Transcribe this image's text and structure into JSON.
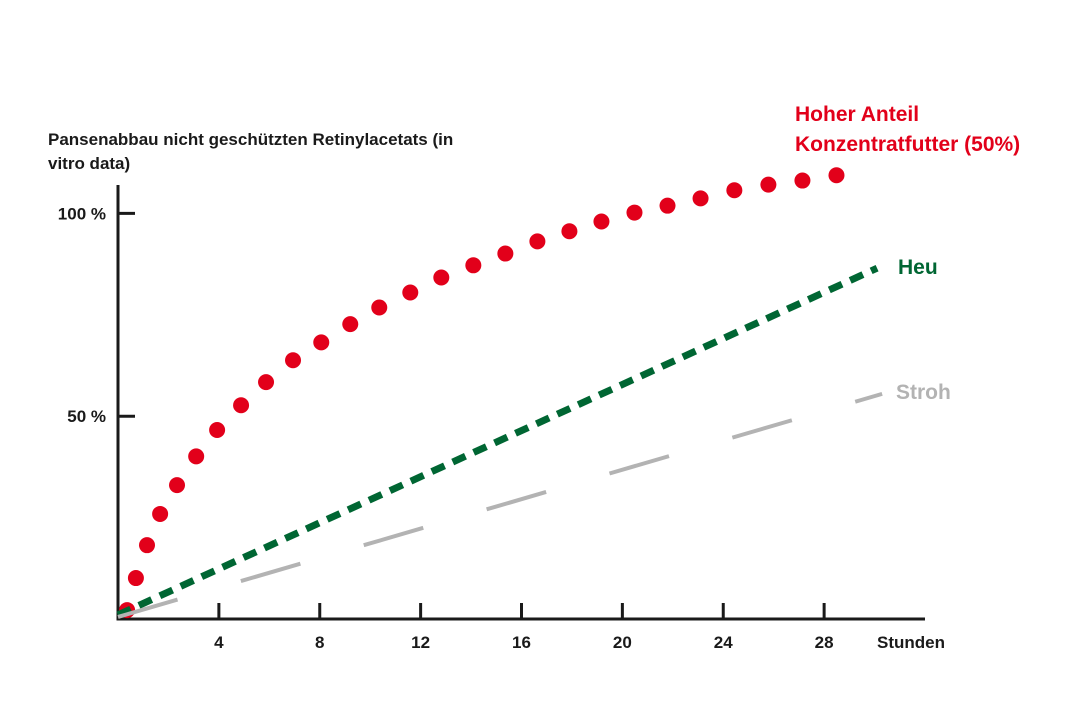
{
  "chart_data": {
    "type": "line",
    "title": "Pansenabbau nicht geschützten Retinylacetats (in vitro data)",
    "x_label": "Stunden",
    "xlim": [
      0,
      32
    ],
    "ylim": [
      0,
      107
    ],
    "xticks": [
      4,
      8,
      12,
      16,
      20,
      24,
      28
    ],
    "yticks": [
      {
        "value": 50,
        "label": "50 %"
      },
      {
        "value": 100,
        "label": "100 %"
      }
    ],
    "series": [
      {
        "name": "Hoher Anteil Konzentratfutter (50%)",
        "color": "#e2001a",
        "style": "dots",
        "x": [
          0.36,
          0.71,
          1.15,
          1.67,
          2.34,
          3.1,
          3.93,
          4.88,
          5.87,
          6.94,
          8.06,
          9.21,
          10.36,
          11.59,
          12.82,
          14.09,
          15.36,
          16.63,
          17.9,
          19.17,
          20.48,
          21.79,
          23.1,
          24.44,
          25.79,
          27.14,
          28.49
        ],
        "values": [
          2.2,
          10.1,
          18.2,
          25.9,
          33.0,
          40.1,
          46.6,
          52.7,
          58.4,
          63.8,
          68.2,
          72.7,
          76.8,
          80.5,
          84.2,
          87.2,
          90.1,
          93.1,
          95.6,
          98.0,
          100.2,
          101.9,
          103.7,
          105.7,
          107.1,
          108.1,
          109.4
        ]
      },
      {
        "name": "Heu",
        "color": "#006633",
        "style": "dashed",
        "x": [
          0,
          30.1
        ],
        "values": [
          1,
          86.5
        ]
      },
      {
        "name": "Stroh",
        "color": "#b3b3b3",
        "style": "long-dash",
        "x": [
          0,
          30.3
        ],
        "values": [
          0.5,
          55.5
        ]
      }
    ]
  }
}
